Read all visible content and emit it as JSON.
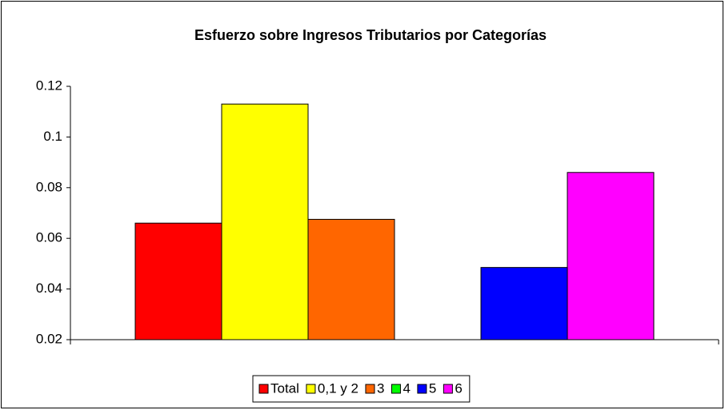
{
  "chart_data": {
    "type": "bar",
    "title": "Esfuerzo sobre Ingresos Tributarios por Categorías",
    "categories": [
      null
    ],
    "series": [
      {
        "name": "Total",
        "color": "#ff0000",
        "values": [
          0.066
        ]
      },
      {
        "name": "0,1 y 2",
        "color": "#ffff00",
        "values": [
          0.113
        ]
      },
      {
        "name": "3",
        "color": "#ff6600",
        "values": [
          0.0675
        ]
      },
      {
        "name": "4",
        "color": "#00ff00",
        "values": [
          null
        ]
      },
      {
        "name": "5",
        "color": "#0000ff",
        "values": [
          0.0485
        ]
      },
      {
        "name": "6",
        "color": "#ff00ff",
        "values": [
          0.086
        ]
      }
    ],
    "ylim": [
      0.02,
      0.12
    ],
    "yticks": [
      0.02,
      0.04,
      0.06,
      0.08,
      0.1,
      0.12
    ],
    "grid": false,
    "legend": "bottom"
  }
}
